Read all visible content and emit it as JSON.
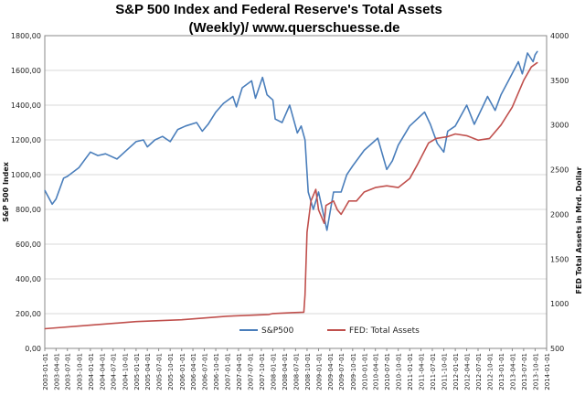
{
  "chart_data": {
    "type": "line",
    "title_line1": "S&P 500 Index and Federal Reserve's Total Assets",
    "title_line2": "(Weekly)/  www.querschuesse.de",
    "ylabel_left": "S&P 500 Index",
    "ylabel_right": "FED Total Assets in Mrd. Dollar",
    "grid": true,
    "legend_position": "bottom",
    "y_left": {
      "min": 0,
      "max": 1800,
      "step": 200,
      "tick_labels": [
        "0,00",
        "200,00",
        "400,00",
        "600,00",
        "800,00",
        "1000,00",
        "1200,00",
        "1400,00",
        "1600,00",
        "1800,00"
      ]
    },
    "y_right": {
      "min": 500,
      "max": 4000,
      "step": 500,
      "tick_labels": [
        "500",
        "1000",
        "1500",
        "2000",
        "2500",
        "3000",
        "3500",
        "4000"
      ]
    },
    "x_tick_labels": [
      "2003-01-01",
      "2003-04-01",
      "2003-07-01",
      "2003-10-01",
      "2004-01-01",
      "2004-04-01",
      "2004-07-01",
      "2004-10-01",
      "2005-01-01",
      "2005-04-01",
      "2005-07-01",
      "2005-10-01",
      "2006-01-01",
      "2006-04-01",
      "2006-07-01",
      "2006-10-01",
      "2007-01-01",
      "2007-04-01",
      "2007-07-01",
      "2007-10-01",
      "2008-01-01",
      "2008-04-01",
      "2008-07-01",
      "2008-10-01",
      "2009-01-01",
      "2009-04-01",
      "2009-07-01",
      "2009-10-01",
      "2010-01-01",
      "2010-04-01",
      "2010-07-01",
      "2010-10-01",
      "2011-01-01",
      "2011-04-01",
      "2011-07-01",
      "2011-10-01",
      "2012-01-01",
      "2012-04-01",
      "2012-07-01",
      "2012-10-01",
      "2013-01-01",
      "2013-04-01",
      "2013-07-01",
      "2013-10-01",
      "2014-01-01"
    ],
    "series": [
      {
        "name": "S&P500",
        "color": "#4a7ebb",
        "axis": "left",
        "x": [
          "2003-01-01",
          "2003-03-01",
          "2003-04-01",
          "2003-06-01",
          "2003-07-01",
          "2003-10-01",
          "2004-01-01",
          "2004-03-01",
          "2004-05-01",
          "2004-08-01",
          "2004-10-01",
          "2005-01-01",
          "2005-03-01",
          "2005-04-01",
          "2005-06-01",
          "2005-08-01",
          "2005-10-01",
          "2005-12-01",
          "2006-02-01",
          "2006-05-01",
          "2006-06-15",
          "2006-08-01",
          "2006-10-01",
          "2006-12-01",
          "2007-02-15",
          "2007-03-15",
          "2007-05-01",
          "2007-07-15",
          "2007-08-15",
          "2007-10-10",
          "2007-11-15",
          "2008-01-01",
          "2008-01-20",
          "2008-03-15",
          "2008-05-15",
          "2008-07-15",
          "2008-08-15",
          "2008-09-15",
          "2008-10-10",
          "2008-11-20",
          "2009-01-01",
          "2009-03-09",
          "2009-05-01",
          "2009-07-01",
          "2009-08-15",
          "2009-10-01",
          "2010-01-01",
          "2010-04-20",
          "2010-07-01",
          "2010-08-15",
          "2010-10-01",
          "2011-01-01",
          "2011-04-30",
          "2011-06-15",
          "2011-08-10",
          "2011-10-01",
          "2011-11-01",
          "2012-01-01",
          "2012-04-01",
          "2012-06-01",
          "2012-09-15",
          "2012-11-15",
          "2013-01-01",
          "2013-03-01",
          "2013-05-20",
          "2013-06-20",
          "2013-08-01",
          "2013-09-15",
          "2013-10-01",
          "2013-10-20"
        ],
        "values": [
          910,
          830,
          860,
          980,
          990,
          1040,
          1130,
          1110,
          1120,
          1090,
          1130,
          1190,
          1200,
          1160,
          1200,
          1220,
          1190,
          1260,
          1280,
          1300,
          1250,
          1290,
          1360,
          1410,
          1450,
          1390,
          1500,
          1540,
          1440,
          1560,
          1460,
          1430,
          1320,
          1300,
          1400,
          1240,
          1280,
          1200,
          900,
          800,
          900,
          680,
          900,
          900,
          1000,
          1050,
          1140,
          1210,
          1030,
          1080,
          1170,
          1280,
          1360,
          1290,
          1180,
          1130,
          1250,
          1280,
          1400,
          1290,
          1450,
          1370,
          1460,
          1540,
          1650,
          1580,
          1700,
          1650,
          1690,
          1710
        ]
      },
      {
        "name": "FED: Total Assets",
        "color": "#c0504d",
        "axis": "right",
        "x": [
          "2003-01-01",
          "2004-01-01",
          "2005-01-01",
          "2006-01-01",
          "2007-01-01",
          "2007-12-01",
          "2008-01-01",
          "2008-06-01",
          "2008-09-05",
          "2008-09-15",
          "2008-10-01",
          "2008-11-01",
          "2008-12-10",
          "2009-01-01",
          "2009-02-15",
          "2009-03-01",
          "2009-05-01",
          "2009-06-01",
          "2009-07-01",
          "2009-09-01",
          "2009-11-01",
          "2010-01-01",
          "2010-04-01",
          "2010-07-01",
          "2010-10-01",
          "2011-01-01",
          "2011-03-01",
          "2011-06-01",
          "2011-08-01",
          "2011-11-01",
          "2012-01-01",
          "2012-04-01",
          "2012-07-01",
          "2012-10-01",
          "2013-01-01",
          "2013-04-01",
          "2013-07-01",
          "2013-09-01",
          "2013-10-20"
        ],
        "values": [
          720,
          760,
          800,
          820,
          860,
          880,
          890,
          900,
          905,
          1100,
          1800,
          2150,
          2280,
          2050,
          1900,
          2100,
          2150,
          2050,
          2000,
          2150,
          2150,
          2250,
          2300,
          2320,
          2300,
          2400,
          2550,
          2800,
          2850,
          2870,
          2900,
          2880,
          2830,
          2850,
          3000,
          3200,
          3500,
          3650,
          3700
        ]
      }
    ]
  }
}
